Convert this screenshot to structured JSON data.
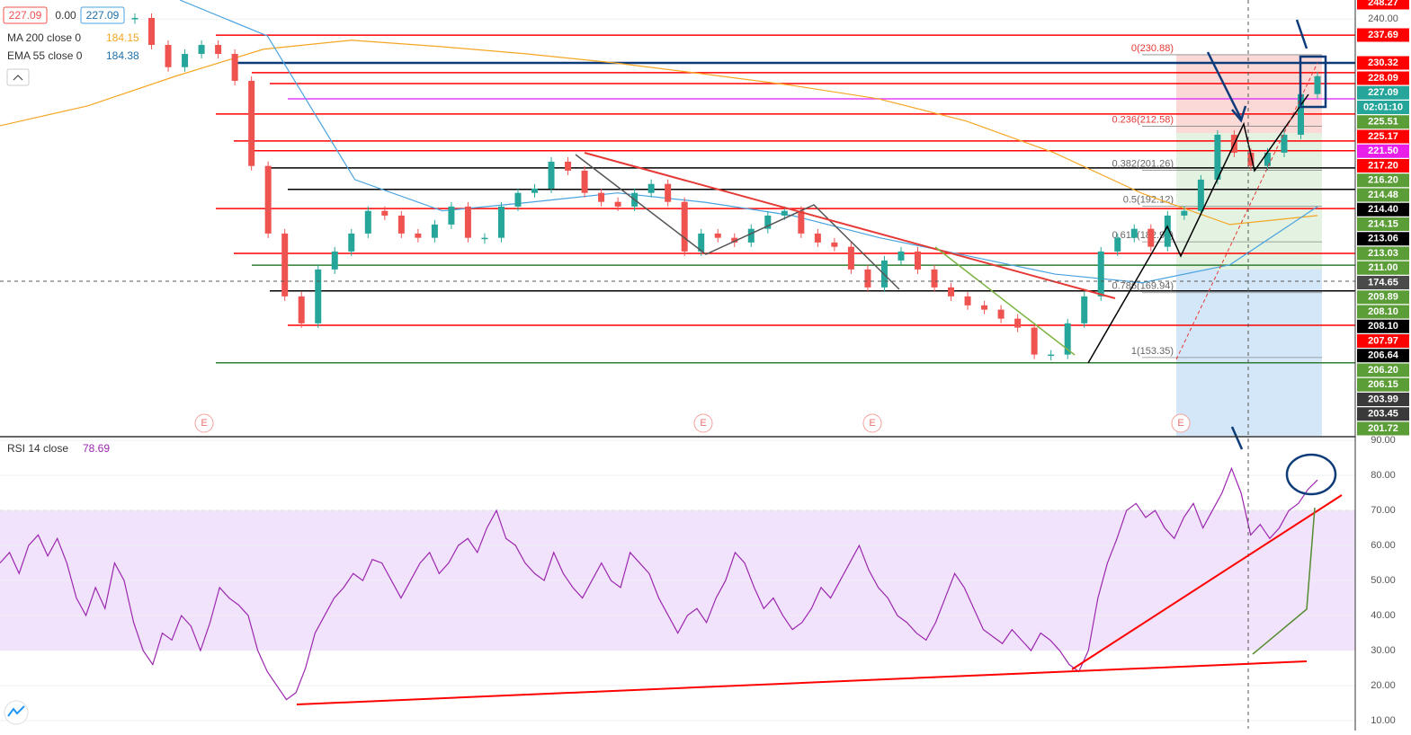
{
  "chart_data": {
    "type": "candlestick",
    "legend": {
      "price": {
        "open": "227.09",
        "change": "0.00",
        "close": "227.09"
      },
      "ma": {
        "name": "MA 200 close 0",
        "value": "184.15",
        "color": "#f5a623"
      },
      "ema": {
        "name": "EMA 55 close 0",
        "value": "184.38",
        "color": "#4aa3df"
      }
    },
    "ylim": [
      133.3,
      244.9
    ],
    "yticks": [
      {
        "value": 240,
        "label": "240.00"
      }
    ],
    "up_color": "#26a69a",
    "down_color": "#ef5350",
    "values": [
      240.3,
      233.4,
      227.7,
      231.1,
      233.4,
      231.1,
      224.2,
      202.4,
      185.1,
      169.0,
      162.1,
      175.9,
      180.5,
      185.1,
      190.9,
      189.7,
      185.1,
      184.0,
      187.4,
      192.0,
      184.0,
      184.0,
      192.0,
      195.5,
      196.6,
      203.5,
      201.2,
      195.5,
      193.2,
      192.0,
      195.5,
      197.8,
      193.2,
      180.5,
      185.1,
      184.0,
      182.8,
      186.3,
      189.7,
      190.9,
      185.1,
      182.8,
      181.7,
      175.9,
      171.3,
      178.2,
      180.5,
      175.9,
      171.3,
      169.0,
      166.7,
      165.6,
      163.3,
      161.0,
      154.1,
      154.1,
      162.1,
      169.0,
      180.5,
      184.0,
      186.3,
      181.7,
      189.7,
      190.9,
      198.9,
      210.4,
      205.8,
      202.4,
      205.8,
      210.4,
      220.8,
      225.4
    ],
    "ma_values": [
      212.7,
      217.8,
      225.4,
      232.3,
      234.6,
      233.0,
      231.1,
      228.8,
      226.0,
      223.1,
      219.6,
      213.9,
      205.8,
      195.4,
      187.4,
      189.7
    ],
    "ema_values": [
      244.9,
      235.7,
      198.9,
      190.9,
      193.1,
      195.5,
      193.1,
      189.7,
      184.0,
      179.4,
      174.7,
      172.5,
      177.1,
      192.0
    ],
    "levels": [
      {
        "value": 235.9,
        "color": "#ff0000"
      },
      {
        "value": 228.8,
        "color": "#0d3b7a"
      },
      {
        "value": 226.3,
        "color": "#ff0000"
      },
      {
        "value": 223.5,
        "color": "#ff0000"
      },
      {
        "value": 219.6,
        "color": "#e040fb"
      },
      {
        "value": 215.7,
        "color": "#ff0000"
      },
      {
        "value": 208.8,
        "color": "#ff0000"
      },
      {
        "value": 206.3,
        "color": "#ff0000"
      },
      {
        "value": 201.9,
        "color": "#000000"
      },
      {
        "value": 196.4,
        "color": "#000000"
      },
      {
        "value": 191.5,
        "color": "#ff0000"
      },
      {
        "value": 180.0,
        "color": "#ff0000"
      },
      {
        "value": 177.0,
        "color": "#2e7d32"
      },
      {
        "value": 170.4,
        "color": "#000000"
      },
      {
        "value": 161.6,
        "color": "#ff0000"
      },
      {
        "value": 152.0,
        "color": "#2e7d32"
      }
    ],
    "fib": [
      {
        "label": "0(230.88)",
        "value": 230.88
      },
      {
        "label": "0.236(212.58)",
        "value": 212.58
      },
      {
        "label": "0.382(201.26)",
        "value": 201.26
      },
      {
        "label": "0.5(192.12)",
        "value": 192.12
      },
      {
        "label": "0.618(182.97)",
        "value": 182.97
      },
      {
        "label": "0.786(169.94)",
        "value": 169.94
      },
      {
        "label": "1(153.35)",
        "value": 153.35
      }
    ],
    "events": [
      "E",
      "E",
      "E",
      "E"
    ],
    "price_labels": [
      {
        "label": "248.27",
        "color": "#ff0000"
      },
      {
        "label": "237.69",
        "color": "#ff0000"
      },
      {
        "label": "230.32",
        "color": "#ff0000"
      },
      {
        "label": "228.09",
        "color": "#ff0000"
      },
      {
        "label": "227.09",
        "color": "#26a69a"
      },
      {
        "label": "02:01:10",
        "color": "#26a69a"
      },
      {
        "label": "225.51",
        "color": "#5b9d37"
      },
      {
        "label": "225.17",
        "color": "#ff0000"
      },
      {
        "label": "221.50",
        "color": "#e91ee8"
      },
      {
        "label": "217.20",
        "color": "#ff0000"
      },
      {
        "label": "216.20",
        "color": "#5b9d37"
      },
      {
        "label": "214.48",
        "color": "#5b9d37"
      },
      {
        "label": "214.40",
        "color": "#000000"
      },
      {
        "label": "214.15",
        "color": "#5b9d37"
      },
      {
        "label": "213.06",
        "color": "#000000"
      },
      {
        "label": "213.03",
        "color": "#5b9d37"
      },
      {
        "label": "211.00",
        "color": "#5b9d37"
      },
      {
        "label": "174.65",
        "color": "#4a4a4a"
      },
      {
        "label": "209.89",
        "color": "#5b9d37"
      },
      {
        "label": "208.10",
        "color": "#5b9d37"
      },
      {
        "label": "208.10",
        "color": "#000000"
      },
      {
        "label": "207.97",
        "color": "#ff0000"
      },
      {
        "label": "206.64",
        "color": "#000000"
      },
      {
        "label": "206.20",
        "color": "#5b9d37"
      },
      {
        "label": "206.15",
        "color": "#5b9d37"
      },
      {
        "label": "203.99",
        "color": "#3a3a3a"
      },
      {
        "label": "203.45",
        "color": "#3a3a3a"
      },
      {
        "label": "201.72",
        "color": "#5b9d37"
      }
    ],
    "rsi": {
      "name": "RSI 14 close",
      "value": "78.69",
      "color": "#9c27b0",
      "ylim": [
        7.7,
        90.8
      ],
      "yticks": [
        {
          "value": 90,
          "label": "90.00"
        },
        {
          "value": 80,
          "label": "80.00"
        },
        {
          "value": 70,
          "label": "70.00"
        },
        {
          "value": 60,
          "label": "60.00"
        },
        {
          "value": 50,
          "label": "50.00"
        },
        {
          "value": 40,
          "label": "40.00"
        },
        {
          "value": 30,
          "label": "30.00"
        },
        {
          "value": 20,
          "label": "20.00"
        },
        {
          "value": 10,
          "label": "10.00"
        }
      ],
      "band": [
        30,
        70
      ],
      "values": [
        55,
        58,
        52,
        60,
        63,
        57,
        62,
        55,
        45,
        40,
        48,
        42,
        55,
        50,
        38,
        30,
        26,
        35,
        33,
        40,
        37,
        30,
        38,
        48,
        45,
        43,
        40,
        30,
        24,
        20,
        16,
        18,
        25,
        35,
        40,
        45,
        48,
        52,
        50,
        56,
        55,
        50,
        45,
        50,
        55,
        58,
        52,
        55,
        60,
        62,
        58,
        65,
        70,
        62,
        60,
        55,
        52,
        50,
        58,
        52,
        48,
        45,
        50,
        55,
        50,
        48,
        58,
        55,
        52,
        45,
        40,
        35,
        40,
        42,
        38,
        45,
        50,
        58,
        55,
        48,
        42,
        45,
        40,
        36,
        38,
        42,
        48,
        45,
        50,
        55,
        60,
        53,
        48,
        45,
        40,
        38,
        35,
        33,
        38,
        45,
        52,
        48,
        42,
        36,
        34,
        32,
        36,
        33,
        30,
        35,
        33,
        30,
        26,
        24,
        30,
        45,
        55,
        62,
        70,
        72,
        68,
        70,
        65,
        62,
        68,
        72,
        65,
        70,
        75,
        82,
        75,
        63,
        66,
        62,
        65,
        70,
        72,
        76,
        78.69
      ]
    }
  }
}
